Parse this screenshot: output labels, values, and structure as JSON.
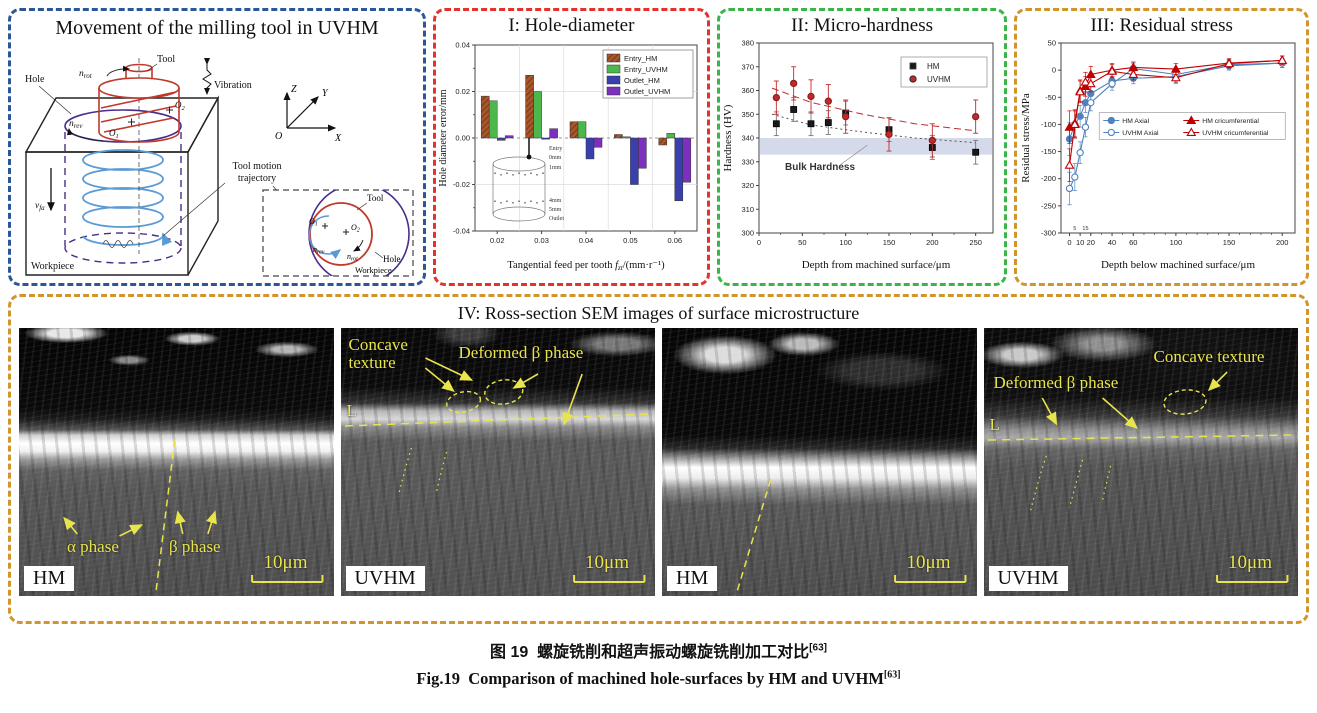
{
  "diagram": {
    "title": "Movement of the milling tool in UVHM",
    "labels": {
      "tool": "Tool",
      "hole": "Hole",
      "vibration": "Vibration",
      "trajectory1": "Tool motion",
      "trajectory2": "trajectory",
      "workpiece": "Workpiece",
      "Z": "Z",
      "Y": "Y",
      "X": "X",
      "O": "O",
      "n": "n",
      "rot": "rot",
      "rev": "rev",
      "v": "v",
      "fa": "fa",
      "one": "1",
      "two": "2"
    }
  },
  "panels": {
    "p4_title": "IV: Ross-section SEM images of surface microstructure"
  },
  "chart_data": [
    {
      "type": "bar",
      "title": "I: Hole-diameter",
      "xlabel_parts": [
        "Tangential feed per tooth ",
        "f",
        "zt",
        "/(mm·r⁻¹)"
      ],
      "ylabel": "Hole diameter error/mm",
      "categories": [
        0.02,
        0.03,
        0.04,
        0.05,
        0.06
      ],
      "ylim": [
        -0.04,
        0.04
      ],
      "yticks": [
        0.04,
        0.02,
        0.0,
        -0.02,
        -0.04
      ],
      "grid": true,
      "legend_position": "top-right",
      "series": [
        {
          "name": "Entry_HM",
          "color": "#a9562b",
          "hatch": true,
          "values": [
            0.018,
            0.027,
            0.007,
            0.0015,
            -0.003
          ]
        },
        {
          "name": "Entry_UVHM",
          "color": "#4cb84c",
          "hatch": false,
          "values": [
            0.016,
            0.02,
            0.007,
            0.0005,
            0.002
          ]
        },
        {
          "name": "Outlet_HM",
          "color": "#3a3fae",
          "hatch": false,
          "values": [
            -0.001,
            -0.0005,
            -0.009,
            -0.02,
            -0.027
          ]
        },
        {
          "name": "Outlet_UVHM",
          "color": "#7d2fbe",
          "hatch": false,
          "values": [
            0.001,
            0.004,
            -0.004,
            -0.013,
            -0.019
          ]
        }
      ],
      "inset_labels": [
        "Entry",
        "0mm",
        "1mm",
        "4mm",
        "5mm",
        "Outlet"
      ]
    },
    {
      "type": "scatter",
      "title": "II: Micro-hardness",
      "xlabel": "Depth from machined surface/μm",
      "ylabel": "Hardness (HV)",
      "xlim": [
        0,
        270
      ],
      "ylim": [
        300,
        380
      ],
      "xticks": [
        0,
        50,
        100,
        150,
        200,
        250
      ],
      "yticks": [
        300,
        310,
        320,
        330,
        340,
        350,
        360,
        370,
        380
      ],
      "grid": false,
      "legend_position": "top-right",
      "band": {
        "label": "Bulk Hardness",
        "range": [
          333,
          340
        ],
        "color": "#b3bcd9"
      },
      "series": [
        {
          "name": "HM",
          "marker": "square",
          "color": "#1a1a1a",
          "err": 5,
          "x": [
            20,
            40,
            60,
            80,
            100,
            150,
            200,
            250
          ],
          "y": [
            346,
            352,
            346,
            346.5,
            350.5,
            343.5,
            336,
            334
          ],
          "trend": [
            [
              15,
              350
            ],
            [
              60,
              345.5
            ],
            [
              120,
              342.5
            ],
            [
              180,
              340
            ],
            [
              250,
              338
            ]
          ],
          "trend_dash": "2,3",
          "trend_color": "#555"
        },
        {
          "name": "UVHM",
          "marker": "circle",
          "color": "#c2292c",
          "err": 7,
          "x": [
            20,
            40,
            60,
            80,
            100,
            150,
            200,
            250
          ],
          "y": [
            357,
            363,
            357.5,
            355.5,
            349,
            341.5,
            339,
            349
          ],
          "trend": [
            [
              15,
              361
            ],
            [
              60,
              355
            ],
            [
              120,
              350
            ],
            [
              180,
              346
            ],
            [
              250,
              343
            ]
          ],
          "trend_dash": "7,4",
          "trend_color": "#c2292c"
        }
      ]
    },
    {
      "type": "line",
      "title": "III: Residual stress",
      "xlabel": "Depth below machined surface/μm",
      "ylabel": "Residual stress/MPa",
      "xlim": [
        -8,
        212
      ],
      "ylim": [
        -300,
        50
      ],
      "xticks_major": [
        0,
        10,
        20,
        40,
        60,
        100,
        150,
        200
      ],
      "xticks_minor_labeled": [
        5,
        15
      ],
      "yticks": [
        50,
        0,
        -50,
        -100,
        -150,
        -200,
        -250,
        -300
      ],
      "grid": false,
      "legend_position": "center",
      "x": [
        0,
        5,
        10,
        15,
        20,
        40,
        60,
        100,
        150,
        200
      ],
      "err": [
        30,
        25,
        20,
        18,
        15,
        12,
        10,
        10,
        8,
        8
      ],
      "series": [
        {
          "name": "HM  Axial",
          "marker": "circle",
          "fill": true,
          "color": "#4f81bd",
          "y": [
            -127,
            -100,
            -85,
            -60,
            -43,
            -20,
            -15,
            -12,
            8,
            13
          ]
        },
        {
          "name": "UVHM Axial",
          "marker": "circle",
          "fill": false,
          "color": "#4f81bd",
          "y": [
            -218,
            -197,
            -152,
            -105,
            -60,
            -25,
            3,
            -8,
            10,
            13
          ]
        },
        {
          "name": "HM cricumferential",
          "marker": "triangle",
          "fill": true,
          "color": "#c00000",
          "y": [
            -105,
            -98,
            -38,
            -30,
            -8,
            0,
            5,
            2,
            13,
            18
          ]
        },
        {
          "name": "UVHM cricumferential",
          "marker": "triangle",
          "fill": false,
          "color": "#c00000",
          "y": [
            -175,
            -100,
            -40,
            -22,
            -25,
            -2,
            -8,
            -14,
            12,
            18
          ]
        }
      ]
    }
  ],
  "sem_images": [
    {
      "tag": "HM",
      "scale": "10μm",
      "alpha": "α phase",
      "beta": "β phase"
    },
    {
      "tag": "UVHM",
      "scale": "10μm",
      "concave": "Concave texture",
      "deformed": "Deformed β phase",
      "L": "L"
    },
    {
      "tag": "HM",
      "scale": "10μm"
    },
    {
      "tag": "UVHM",
      "scale": "10μm",
      "deformed": "Deformed β phase",
      "concave": "Concave texture",
      "L": "L"
    }
  ],
  "caption": {
    "zh_prefix": "图 19",
    "zh_text": "螺旋铣削和超声振动螺旋铣削加工对比",
    "en_prefix": "Fig.19",
    "en_text": "Comparison of machined hole-surfaces by HM and UVHM",
    "ref": "[63]"
  },
  "colors": {
    "border_blue": "#2b579a",
    "border_red": "#e5322d",
    "border_green": "#3bb54a",
    "border_orange": "#d2952e",
    "annotation_yellow": "#e8e44c",
    "tool_red": "#c0392b",
    "helix_blue": "#5b9bd5",
    "hole_purple": "#4a2d8a"
  }
}
